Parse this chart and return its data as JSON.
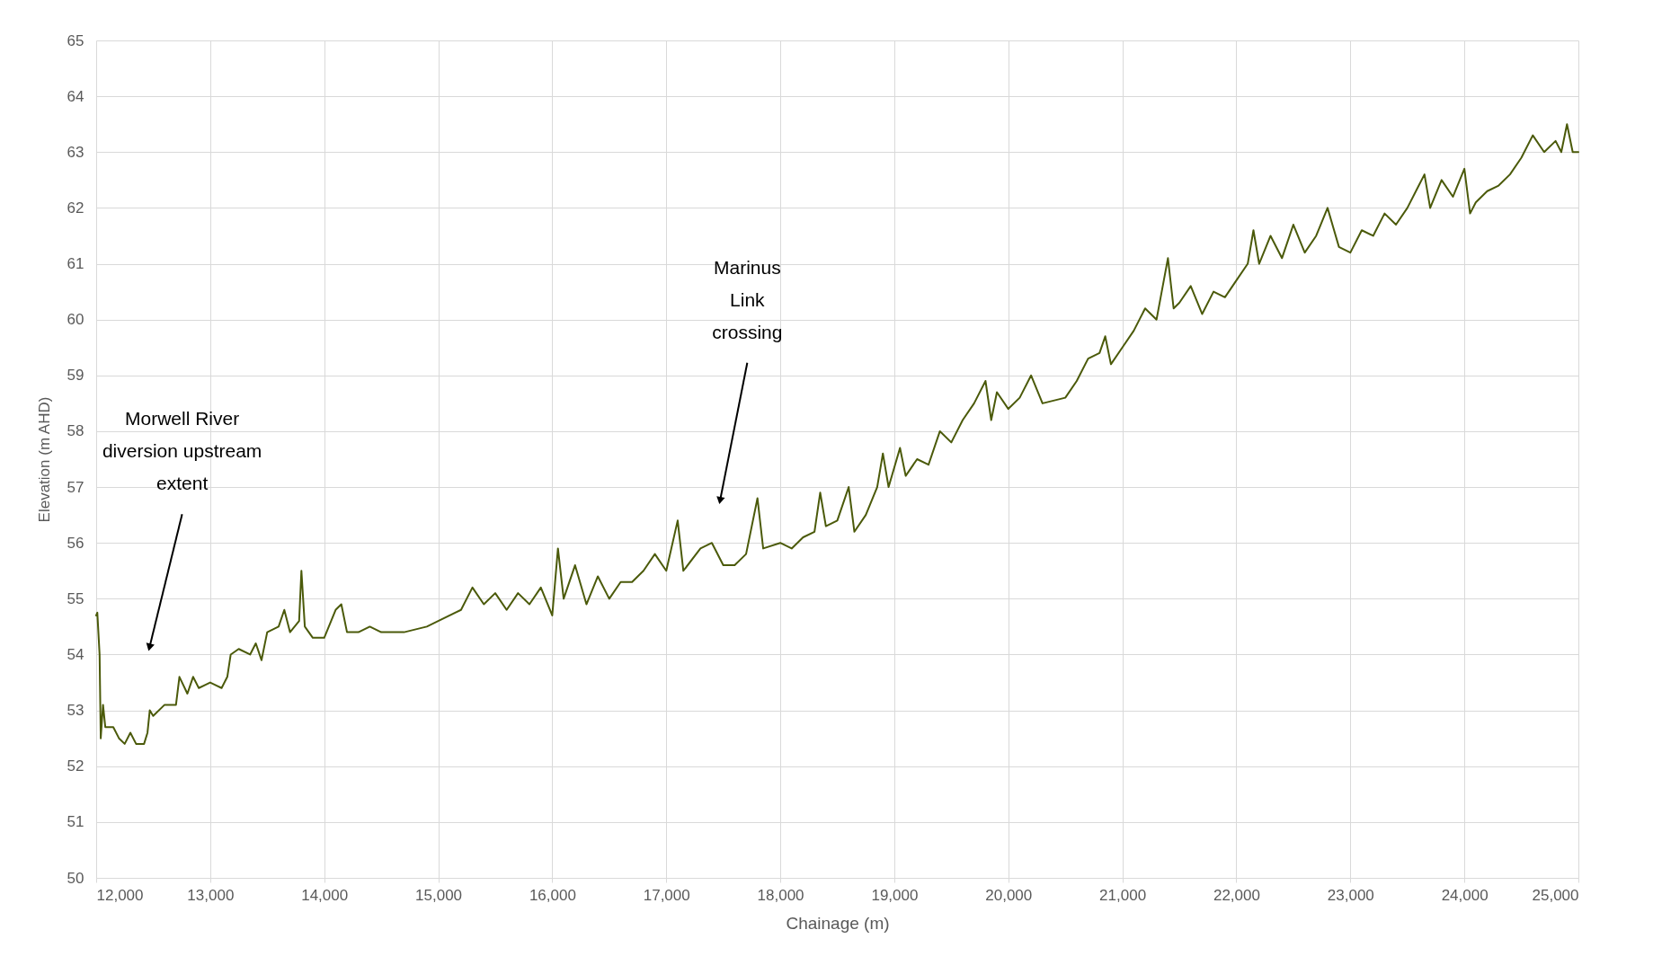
{
  "chart_data": {
    "type": "line",
    "xlabel": "Chainage (m)",
    "ylabel": "Elevation (m AHD)",
    "xlim": [
      12000,
      25000
    ],
    "xticks": [
      {
        "value": 12000,
        "label": "12,000"
      },
      {
        "value": 13000,
        "label": "13,000"
      },
      {
        "value": 14000,
        "label": "14,000"
      },
      {
        "value": 15000,
        "label": "15,000"
      },
      {
        "value": 16000,
        "label": "16,000"
      },
      {
        "value": 17000,
        "label": "17,000"
      },
      {
        "value": 18000,
        "label": "18,000"
      },
      {
        "value": 19000,
        "label": "19,000"
      },
      {
        "value": 20000,
        "label": "20,000"
      },
      {
        "value": 21000,
        "label": "21,000"
      },
      {
        "value": 22000,
        "label": "22,000"
      },
      {
        "value": 23000,
        "label": "23,000"
      },
      {
        "value": 24000,
        "label": "24,000"
      },
      {
        "value": 25000,
        "label": "25,000"
      }
    ],
    "ylim": [
      50,
      65
    ],
    "yticks": [
      50,
      51,
      52,
      53,
      54,
      55,
      56,
      57,
      58,
      59,
      60,
      61,
      62,
      63,
      64,
      65
    ],
    "grid": true,
    "marker": "none",
    "line_style": "solid",
    "annotations": [
      {
        "text": "Morwell River\ndiversion upstream\nextent",
        "x": 12470,
        "y": 54.15
      },
      {
        "text": "Marinus\nLink\ncrossing",
        "x": 17474,
        "y": 56.78
      }
    ],
    "x": [
      12000,
      12010,
      12030,
      12040,
      12060,
      12080,
      12150,
      12200,
      12250,
      12300,
      12350,
      12420,
      12450,
      12470,
      12500,
      12600,
      12700,
      12730,
      12800,
      12850,
      12900,
      13000,
      13100,
      13150,
      13180,
      13250,
      13350,
      13400,
      13450,
      13500,
      13600,
      13650,
      13700,
      13780,
      13800,
      13830,
      13900,
      14000,
      14100,
      14150,
      14200,
      14300,
      14400,
      14500,
      14700,
      14900,
      15000,
      15200,
      15300,
      15400,
      15500,
      15600,
      15700,
      15800,
      15900,
      16000,
      16050,
      16100,
      16200,
      16300,
      16400,
      16500,
      16600,
      16700,
      16800,
      16900,
      17000,
      17100,
      17150,
      17300,
      17400,
      17500,
      17600,
      17700,
      17800,
      17850,
      18000,
      18100,
      18200,
      18300,
      18350,
      18400,
      18500,
      18600,
      18650,
      18750,
      18850,
      18900,
      18950,
      19050,
      19100,
      19200,
      19300,
      19400,
      19500,
      19600,
      19700,
      19800,
      19850,
      19900,
      20000,
      20100,
      20200,
      20300,
      20500,
      20600,
      20700,
      20800,
      20850,
      20900,
      21000,
      21100,
      21200,
      21300,
      21400,
      21450,
      21500,
      21600,
      21700,
      21800,
      21900,
      22000,
      22100,
      22150,
      22200,
      22300,
      22400,
      22500,
      22600,
      22700,
      22800,
      22900,
      23000,
      23100,
      23200,
      23300,
      23400,
      23500,
      23600,
      23650,
      23700,
      23800,
      23900,
      24000,
      24050,
      24100,
      24200,
      24300,
      24400,
      24500,
      24600,
      24700,
      24800,
      24850,
      24900,
      24950,
      25000
    ],
    "series": [
      {
        "color": "#4b5a0a",
        "values": [
          54.7,
          54.75,
          54.0,
          52.5,
          53.1,
          52.7,
          52.7,
          52.5,
          52.4,
          52.6,
          52.4,
          52.4,
          52.6,
          53.0,
          52.9,
          53.1,
          53.1,
          53.6,
          53.3,
          53.6,
          53.4,
          53.5,
          53.4,
          53.6,
          54.0,
          54.1,
          54.0,
          54.2,
          53.9,
          54.4,
          54.5,
          54.8,
          54.4,
          54.6,
          55.5,
          54.5,
          54.3,
          54.3,
          54.8,
          54.9,
          54.4,
          54.4,
          54.5,
          54.4,
          54.4,
          54.5,
          54.6,
          54.8,
          55.2,
          54.9,
          55.1,
          54.8,
          55.1,
          54.9,
          55.2,
          54.7,
          55.9,
          55.0,
          55.6,
          54.9,
          55.4,
          55.0,
          55.3,
          55.3,
          55.5,
          55.8,
          55.5,
          56.4,
          55.5,
          55.9,
          56.0,
          55.6,
          55.6,
          55.8,
          56.8,
          55.9,
          56.0,
          55.9,
          56.1,
          56.2,
          56.9,
          56.3,
          56.4,
          57.0,
          56.2,
          56.5,
          57.0,
          57.6,
          57.0,
          57.7,
          57.2,
          57.5,
          57.4,
          58.0,
          57.8,
          58.2,
          58.5,
          58.9,
          58.2,
          58.7,
          58.4,
          58.6,
          59.0,
          58.5,
          58.6,
          58.9,
          59.3,
          59.4,
          59.7,
          59.2,
          59.5,
          59.8,
          60.2,
          60.0,
          61.1,
          60.2,
          60.3,
          60.6,
          60.1,
          60.5,
          60.4,
          60.7,
          61.0,
          61.6,
          61.0,
          61.5,
          61.1,
          61.7,
          61.2,
          61.5,
          62.0,
          61.3,
          61.2,
          61.6,
          61.5,
          61.9,
          61.7,
          62.0,
          62.4,
          62.6,
          62.0,
          62.5,
          62.2,
          62.7,
          61.9,
          62.1,
          62.3,
          62.4,
          62.6,
          62.9,
          63.3,
          63.0,
          63.2,
          63.0,
          63.5,
          63.0,
          63.0
        ]
      }
    ]
  }
}
